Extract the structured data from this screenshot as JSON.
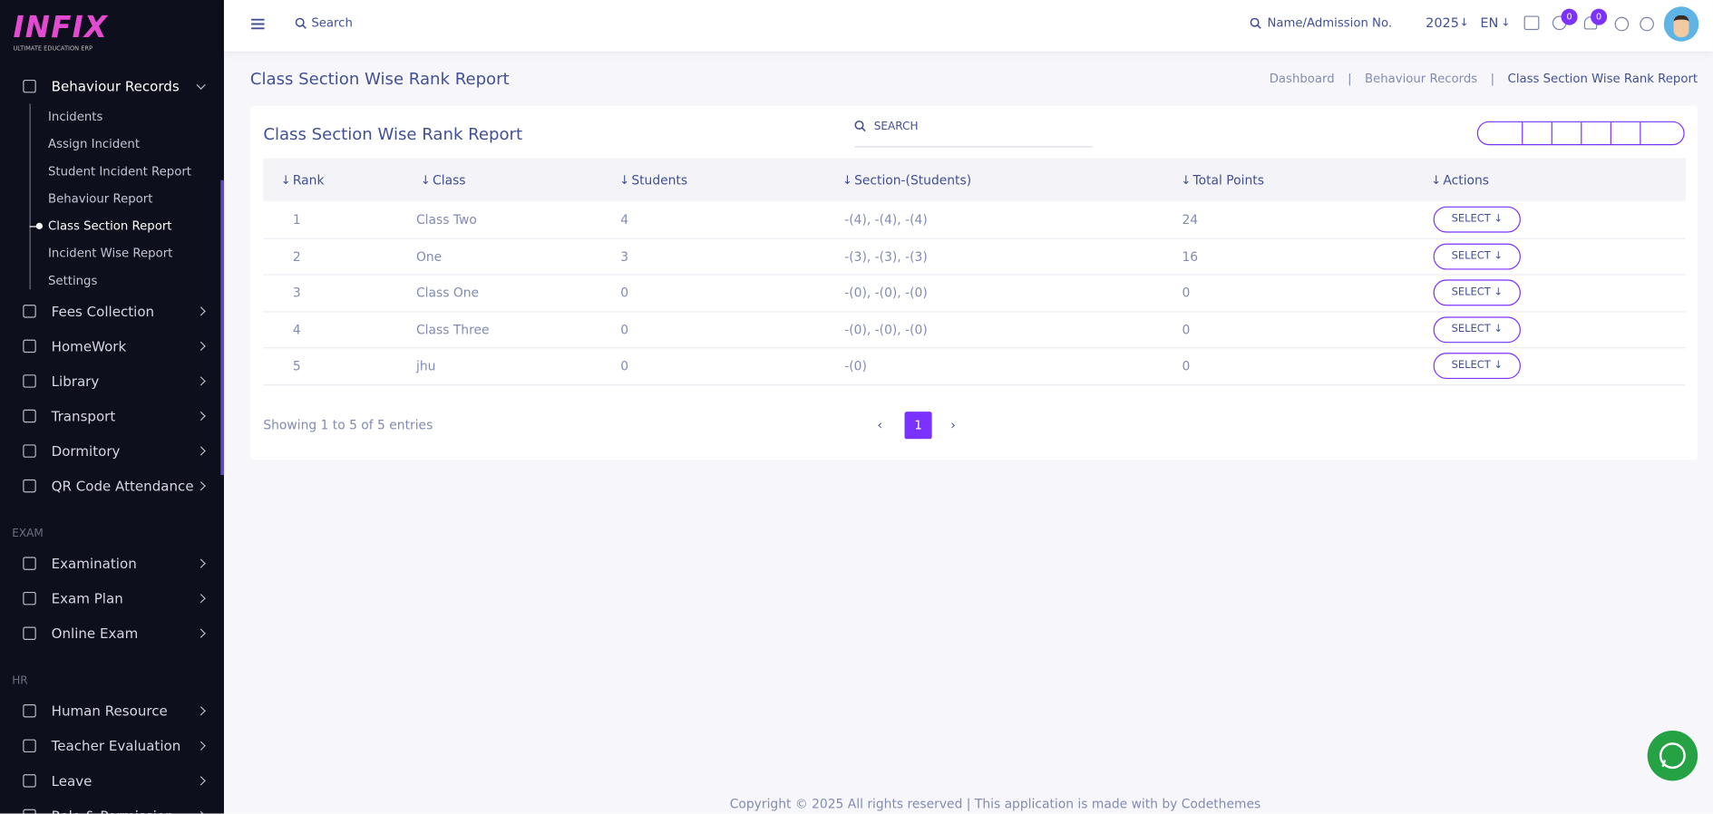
{
  "logo": {
    "title": "INFIX",
    "subtitle": "ULTIMATE EDUCATION ERP"
  },
  "sidebar": {
    "open_menu": "Behaviour Records",
    "submenu": [
      "Incidents",
      "Assign Incident",
      "Student Incident Report",
      "Behaviour Report",
      "Class Section Report",
      "Incident Wise Report",
      "Settings"
    ],
    "menu": [
      "Fees Collection",
      "HomeWork",
      "Library",
      "Transport",
      "Dormitory",
      "QR Code Attendance"
    ],
    "sections": [
      {
        "label": "EXAM",
        "items": [
          "Examination",
          "Exam Plan",
          "Online Exam"
        ]
      },
      {
        "label": "HR",
        "items": [
          "Human Resource",
          "Teacher Evaluation",
          "Leave",
          "Role & Permission"
        ]
      }
    ]
  },
  "topbar": {
    "search": "Search",
    "student_search": "Name/Admission No.",
    "year": "2025",
    "language": "EN",
    "message_count": 0,
    "notification_count": 0
  },
  "page": {
    "title": "Class Section Wise Rank Report",
    "breadcrumb": [
      "Dashboard",
      "Behaviour Records",
      "Class Section Wise Rank Report"
    ]
  },
  "card": {
    "title": "Class Section Wise Rank Report",
    "search": "SEARCH"
  },
  "table": {
    "headers": [
      "Rank",
      "Class",
      "Students",
      "Section-(Students)",
      "Total Points",
      "Actions"
    ],
    "rows": [
      [
        1,
        "Class Two",
        4,
        "-(4), -(4), -(4)",
        24,
        "SELECT"
      ],
      [
        2,
        "One",
        3,
        "-(3), -(3), -(3)",
        16,
        "SELECT"
      ],
      [
        3,
        "Class One",
        0,
        "-(0), -(0), -(0)",
        0,
        "SELECT"
      ],
      [
        4,
        "Class Three",
        0,
        "-(0), -(0), -(0)",
        0,
        "SELECT"
      ],
      [
        5,
        "jhu",
        0,
        "-(0)",
        0,
        "SELECT"
      ]
    ]
  },
  "pagination": {
    "info": "Showing 1 to 5 of 5 entries",
    "pages": [
      1
    ]
  },
  "footer": "Copyright © 2025 All rights reserved | This application is made with by Codethemes"
}
